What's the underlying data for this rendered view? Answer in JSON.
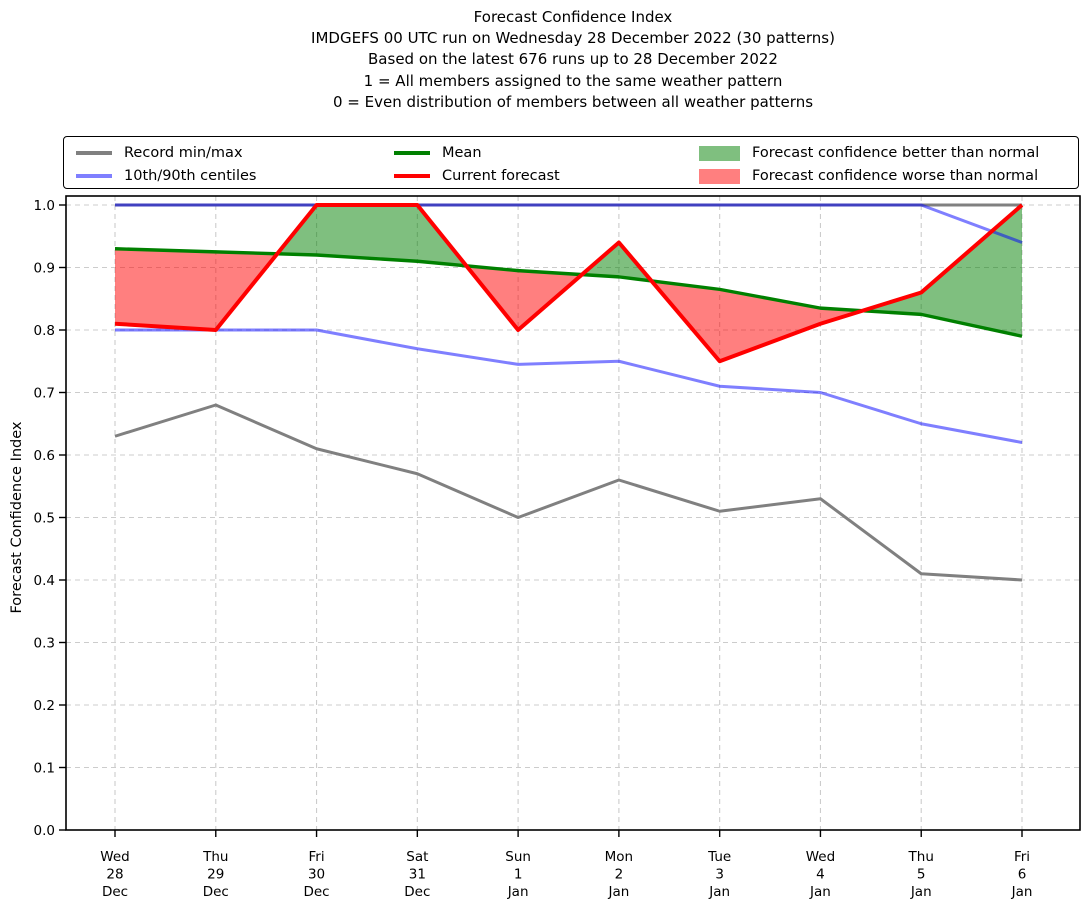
{
  "chart_data": {
    "type": "line",
    "title_lines": [
      "Forecast Confidence Index",
      "IMDGEFS 00 UTC run on Wednesday 28 December 2022 (30 patterns)",
      "Based on the latest 676 runs up to 28 December 2022",
      "1 = All members assigned to the same weather pattern",
      "0 = Even distribution of members between all weather patterns"
    ],
    "ylabel": "Forecast Confidence Index",
    "ylim": [
      0.0,
      1.0
    ],
    "yticks": [
      "0.0",
      "0.1",
      "0.2",
      "0.3",
      "0.4",
      "0.5",
      "0.6",
      "0.7",
      "0.8",
      "0.9",
      "1.0"
    ],
    "grid": true,
    "legend_position": "top",
    "categories": [
      {
        "day": "Wed",
        "date": "28",
        "month": "Dec"
      },
      {
        "day": "Thu",
        "date": "29",
        "month": "Dec"
      },
      {
        "day": "Fri",
        "date": "30",
        "month": "Dec"
      },
      {
        "day": "Sat",
        "date": "31",
        "month": "Dec"
      },
      {
        "day": "Sun",
        "date": "1",
        "month": "Jan"
      },
      {
        "day": "Mon",
        "date": "2",
        "month": "Jan"
      },
      {
        "day": "Tue",
        "date": "3",
        "month": "Jan"
      },
      {
        "day": "Wed",
        "date": "4",
        "month": "Jan"
      },
      {
        "day": "Thu",
        "date": "5",
        "month": "Jan"
      },
      {
        "day": "Fri",
        "date": "6",
        "month": "Jan"
      }
    ],
    "series": {
      "record_max": {
        "label": "Record max",
        "color": "#808080",
        "values": [
          1.0,
          1.0,
          1.0,
          1.0,
          1.0,
          1.0,
          1.0,
          1.0,
          1.0,
          1.0
        ]
      },
      "record_min": {
        "label": "Record min",
        "color": "#808080",
        "values": [
          0.63,
          0.68,
          0.61,
          0.57,
          0.5,
          0.56,
          0.51,
          0.53,
          0.41,
          0.4
        ]
      },
      "centile_90": {
        "label": "90th centile",
        "color": "#0000ff",
        "opacity": 0.5,
        "values": [
          1.0,
          1.0,
          1.0,
          1.0,
          1.0,
          1.0,
          1.0,
          1.0,
          1.0,
          0.94
        ]
      },
      "centile_10": {
        "label": "10th centile",
        "color": "#0000ff",
        "opacity": 0.5,
        "values": [
          0.8,
          0.8,
          0.8,
          0.77,
          0.745,
          0.75,
          0.71,
          0.7,
          0.65,
          0.62
        ]
      },
      "mean": {
        "label": "Mean",
        "color": "#008000",
        "values": [
          0.93,
          0.925,
          0.92,
          0.91,
          0.895,
          0.885,
          0.865,
          0.835,
          0.825,
          0.79
        ]
      },
      "current": {
        "label": "Current forecast",
        "color": "#ff0000",
        "values": [
          0.81,
          0.8,
          1.0,
          1.0,
          0.8,
          0.94,
          0.75,
          0.81,
          0.86,
          1.0
        ]
      }
    },
    "fills": {
      "better": {
        "label": "Forecast confidence better than normal",
        "color": "#008000",
        "opacity": 0.5
      },
      "worse": {
        "label": "Forecast confidence worse than normal",
        "color": "#ff0000",
        "opacity": 0.5
      }
    },
    "legend": {
      "entries": [
        {
          "label": "Record min/max",
          "swatch": "line",
          "color": "#808080"
        },
        {
          "label": "10th/90th centiles",
          "swatch": "line",
          "color": "#7f7fff"
        },
        {
          "label": "Mean",
          "swatch": "line",
          "color": "#008000"
        },
        {
          "label": "Current forecast",
          "swatch": "line",
          "color": "#ff0000"
        },
        {
          "label": "Forecast confidence better than normal",
          "swatch": "patch",
          "color": "#7fbf7f"
        },
        {
          "label": "Forecast confidence worse than normal",
          "swatch": "patch",
          "color": "#ff7f7f"
        }
      ]
    }
  }
}
